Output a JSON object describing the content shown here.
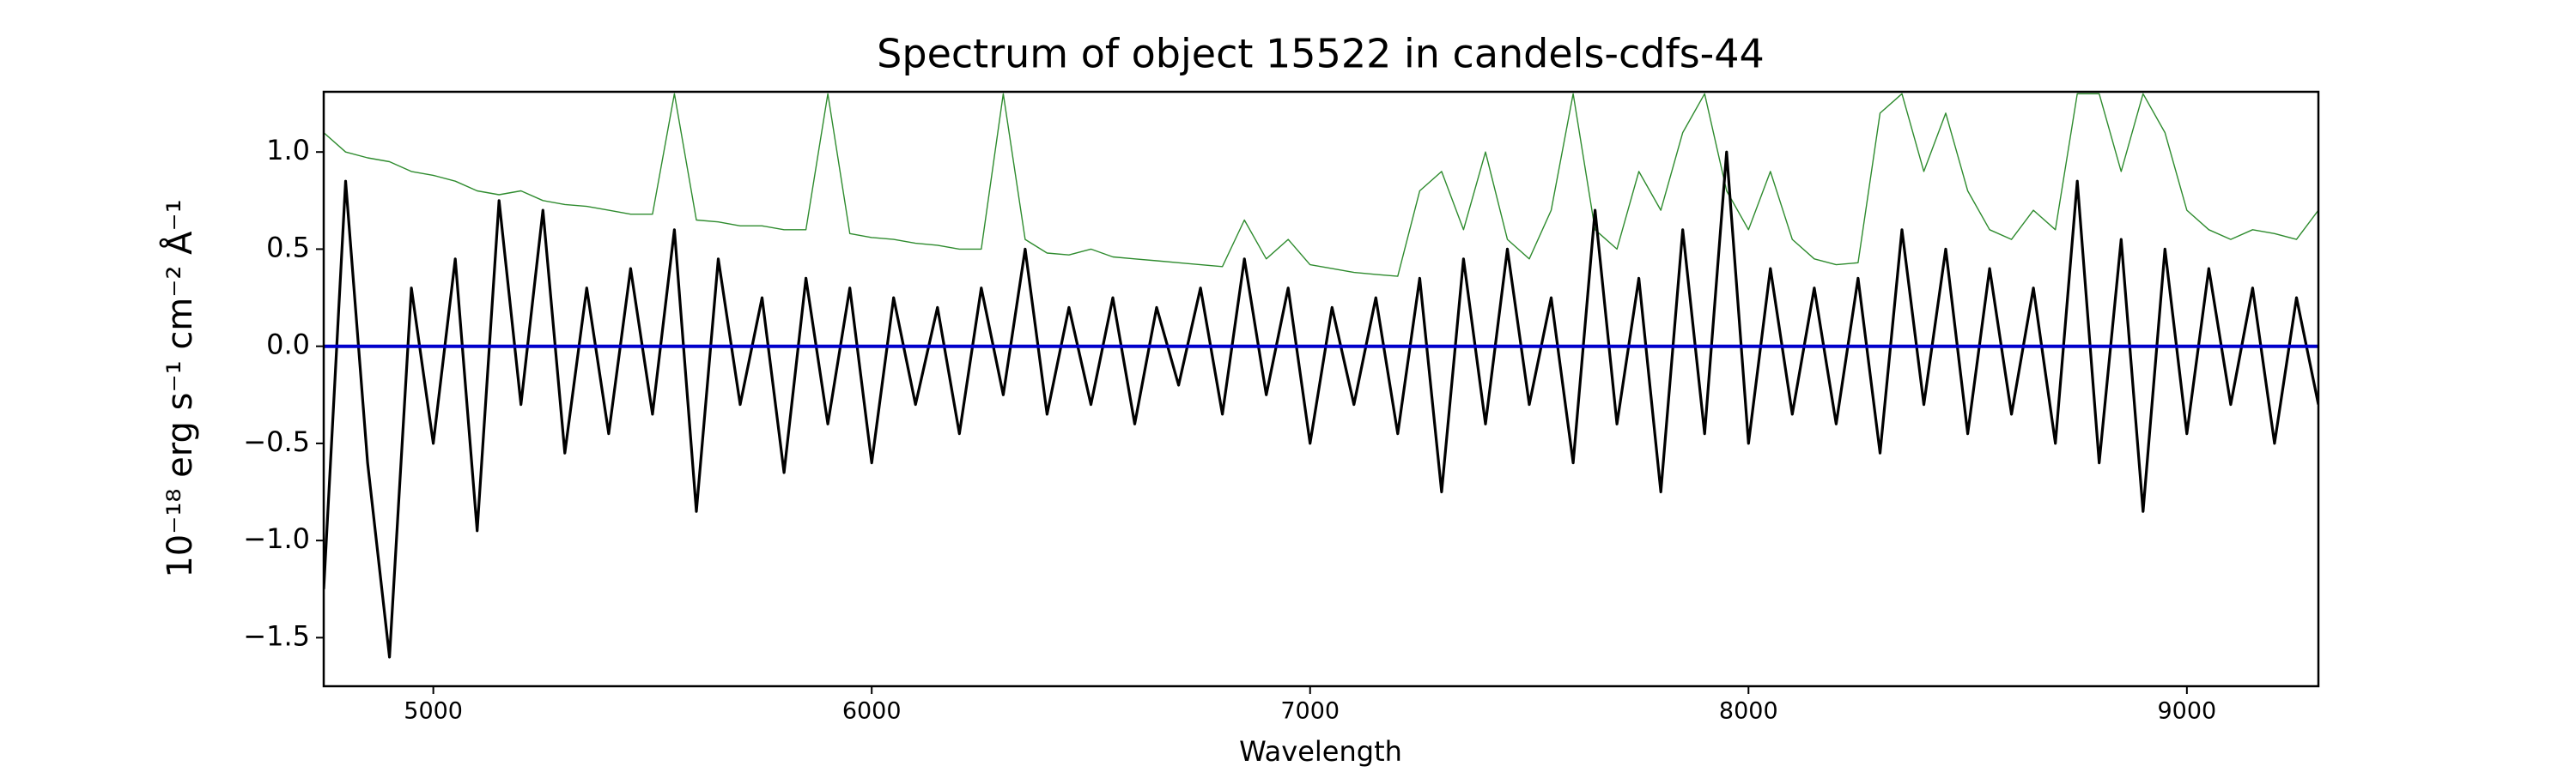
{
  "chart_data": {
    "type": "line",
    "title": "Spectrum of object 15522 in candels-cdfs-44",
    "xlabel": "Wavelength",
    "ylabel": "10⁻¹⁸ erg s⁻¹ cm⁻² Å⁻¹",
    "x": [
      4750,
      4800,
      4850,
      4900,
      4950,
      5000,
      5050,
      5100,
      5150,
      5200,
      5250,
      5300,
      5350,
      5400,
      5450,
      5500,
      5550,
      5600,
      5650,
      5700,
      5750,
      5800,
      5850,
      5900,
      5950,
      6000,
      6050,
      6100,
      6150,
      6200,
      6250,
      6300,
      6350,
      6400,
      6450,
      6500,
      6550,
      6600,
      6650,
      6700,
      6750,
      6800,
      6850,
      6900,
      6950,
      7000,
      7050,
      7100,
      7150,
      7200,
      7250,
      7300,
      7350,
      7400,
      7450,
      7500,
      7550,
      7600,
      7650,
      7700,
      7750,
      7800,
      7850,
      7900,
      7950,
      8000,
      8050,
      8100,
      8150,
      8200,
      8250,
      8300,
      8350,
      8400,
      8450,
      8500,
      8550,
      8600,
      8650,
      8700,
      8750,
      8800,
      8850,
      8900,
      8950,
      9000,
      9050,
      9100,
      9150,
      9200,
      9250,
      9300
    ],
    "series": [
      {
        "color": "#2e8b2e",
        "values": [
          1.1,
          1.0,
          0.97,
          0.95,
          0.9,
          0.88,
          0.85,
          0.8,
          0.78,
          0.8,
          0.75,
          0.73,
          0.72,
          0.7,
          0.68,
          0.68,
          1.3,
          0.65,
          0.64,
          0.62,
          0.62,
          0.6,
          0.6,
          1.3,
          0.58,
          0.56,
          0.55,
          0.53,
          0.52,
          0.5,
          0.5,
          1.3,
          0.55,
          0.48,
          0.47,
          0.5,
          0.46,
          0.45,
          0.44,
          0.43,
          0.42,
          0.41,
          0.65,
          0.45,
          0.55,
          0.42,
          0.4,
          0.38,
          0.37,
          0.36,
          0.8,
          0.9,
          0.6,
          1.0,
          0.55,
          0.45,
          0.7,
          1.3,
          0.6,
          0.5,
          0.9,
          0.7,
          1.1,
          1.3,
          0.8,
          0.6,
          0.9,
          0.55,
          0.45,
          0.42,
          0.43,
          1.2,
          1.3,
          0.9,
          1.2,
          0.8,
          0.6,
          0.55,
          0.7,
          0.6,
          1.3,
          1.3,
          0.9,
          1.3,
          1.1,
          0.7,
          0.6,
          0.55,
          0.6,
          0.58,
          0.55,
          0.7
        ]
      },
      {
        "color": "#000000",
        "values": [
          -1.25,
          0.85,
          -0.6,
          -1.6,
          0.3,
          -0.5,
          0.45,
          -0.95,
          0.75,
          -0.3,
          0.7,
          -0.55,
          0.3,
          -0.45,
          0.4,
          -0.35,
          0.6,
          -0.85,
          0.45,
          -0.3,
          0.25,
          -0.65,
          0.35,
          -0.4,
          0.3,
          -0.6,
          0.25,
          -0.3,
          0.2,
          -0.45,
          0.3,
          -0.25,
          0.5,
          -0.35,
          0.2,
          -0.3,
          0.25,
          -0.4,
          0.2,
          -0.2,
          0.3,
          -0.35,
          0.45,
          -0.25,
          0.3,
          -0.5,
          0.2,
          -0.3,
          0.25,
          -0.45,
          0.35,
          -0.75,
          0.45,
          -0.4,
          0.5,
          -0.3,
          0.25,
          -0.6,
          0.7,
          -0.4,
          0.35,
          -0.75,
          0.6,
          -0.45,
          1.0,
          -0.5,
          0.4,
          -0.35,
          0.3,
          -0.4,
          0.35,
          -0.55,
          0.6,
          -0.3,
          0.5,
          -0.45,
          0.4,
          -0.35,
          0.3,
          -0.5,
          0.85,
          -0.6,
          0.55,
          -0.85,
          0.5,
          -0.45,
          0.4,
          -0.3,
          0.3,
          -0.5,
          0.25,
          -0.3
        ]
      },
      {
        "color": "#0000cc",
        "x": [
          4750,
          9300
        ],
        "values": [
          0,
          0
        ]
      }
    ],
    "xlim": [
      4750,
      9300
    ],
    "ylim": [
      -1.75,
      1.31
    ],
    "xticks": [
      5000,
      6000,
      7000,
      8000,
      9000
    ],
    "yticks": [
      {
        "value": -1.5,
        "label": "−1.5"
      },
      {
        "value": -1.0,
        "label": "−1.0"
      },
      {
        "value": -0.5,
        "label": "−0.5"
      },
      {
        "value": 0.0,
        "label": "0.0"
      },
      {
        "value": 0.5,
        "label": "0.5"
      },
      {
        "value": 1.0,
        "label": "1.0"
      }
    ],
    "grid": false
  }
}
